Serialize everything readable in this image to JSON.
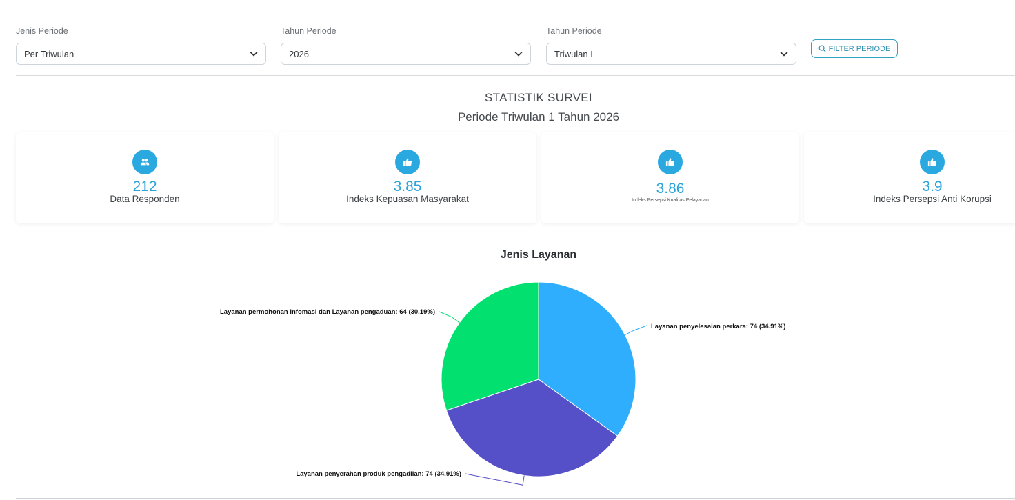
{
  "filters": {
    "jenis_periode": {
      "label": "Jenis Periode",
      "value": "Per Triwulan"
    },
    "tahun_periode": {
      "label": "Tahun Periode",
      "value": "2026"
    },
    "triwulan_periode": {
      "label": "Tahun Periode",
      "value": "Triwulan I"
    },
    "filter_button_label": "FILTER PERIODE"
  },
  "statistik": {
    "title": "STATISTIK SURVEI",
    "subtitle": "Periode Triwulan 1 Tahun 2026"
  },
  "cards": [
    {
      "icon": "users-icon",
      "value": "212",
      "label": "Data Responden"
    },
    {
      "icon": "thumbs-up-icon",
      "value": "3.85",
      "label": "Indeks Kepuasan Masyarakat"
    },
    {
      "icon": "thumbs-up-icon",
      "value": "3.86",
      "label": "Indeks Persepsi Kualitas Pelayanan"
    },
    {
      "icon": "thumbs-up-icon",
      "value": "3.9",
      "label": "Indeks Persepsi Anti Korupsi"
    }
  ],
  "colors": {
    "accent": "#2aa8e0",
    "slice_1": "#2eaefc",
    "slice_2": "#5550c8",
    "slice_3": "#02e070"
  },
  "chart_data": {
    "type": "pie",
    "title": "Jenis Layanan",
    "slices": [
      {
        "label": "Layanan penyelesaian perkara: 74 (34.91%)",
        "name": "Layanan penyelesaian perkara",
        "value": 74,
        "percent": 34.91
      },
      {
        "label": "Layanan penyerahan produk pengadilan: 74 (34.91%)",
        "name": "Layanan penyerahan produk pengadilan",
        "value": 74,
        "percent": 34.91
      },
      {
        "label": "Layanan permohonan infomasi dan Layanan pengaduan: 64 (30.19%)",
        "name": "Layanan permohonan infomasi dan Layanan pengaduan",
        "value": 64,
        "percent": 30.19
      }
    ]
  }
}
